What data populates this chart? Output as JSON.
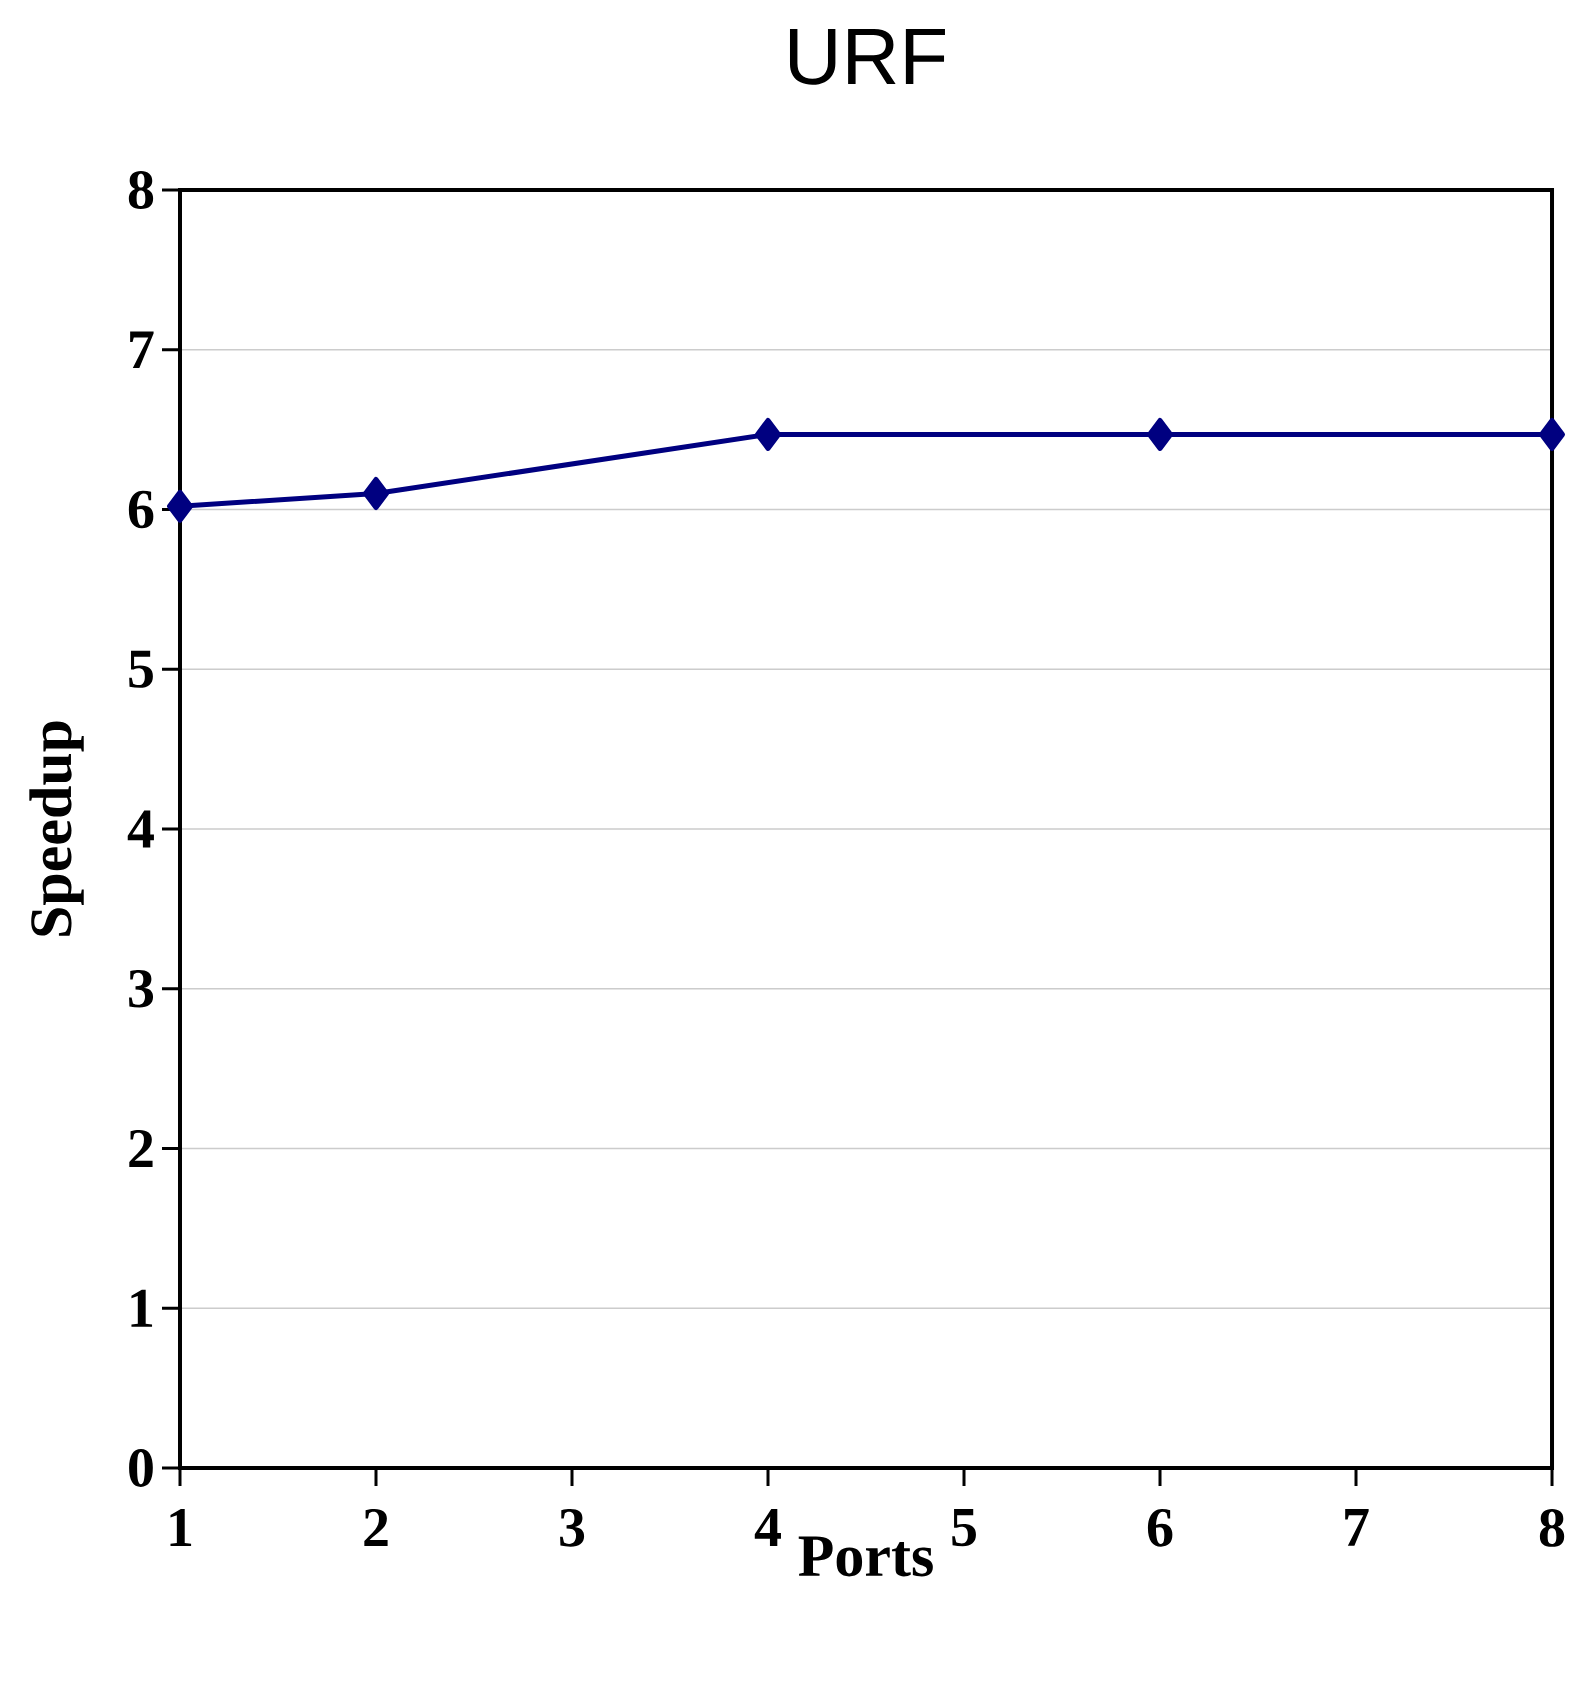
{
  "chart_data": {
    "type": "line",
    "title": "URF",
    "xlabel": "Ports",
    "ylabel": "Speedup",
    "x": [
      1,
      2,
      4,
      6,
      8
    ],
    "series": [
      {
        "color": "#000080",
        "values": [
          6.02,
          6.1,
          6.47,
          6.47,
          6.47
        ]
      }
    ],
    "xlim": [
      1,
      8
    ],
    "xticks": [
      1,
      2,
      3,
      4,
      5,
      6,
      7,
      8
    ],
    "ylim": [
      0,
      8
    ],
    "yticks": [
      0,
      1,
      2,
      3,
      4,
      5,
      6,
      7,
      8
    ],
    "grid": "y",
    "marker": "diamond",
    "line_style": "solid"
  }
}
